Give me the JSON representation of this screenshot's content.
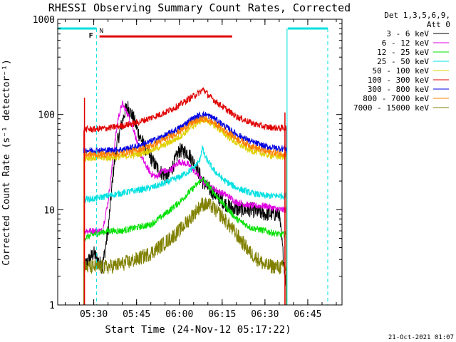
{
  "chart_data": {
    "type": "line",
    "title": "RHESSI Observing Summary Count Rates, Corrected",
    "xlabel": "Start Time (24-Nov-12 05:17:22)",
    "ylabel": "Corrected Count Rate (s⁻¹ detector⁻¹)",
    "y_scale": "log",
    "ylim": [
      1,
      1000
    ],
    "xlim": [
      "05:17:22",
      "06:57:00"
    ],
    "x_ticks": [
      "05:30",
      "05:45",
      "06:00",
      "06:15",
      "06:30",
      "06:45"
    ],
    "y_ticks": [
      "1",
      "10",
      "100",
      "1000"
    ],
    "legend_header": [
      "Det 1,3,5,6,9,",
      "Att 0"
    ],
    "legend_position": "right",
    "timestamp": "21-Oct-2021 01:07",
    "markers": {
      "flare": "F",
      "night": "N"
    },
    "series": [
      {
        "name": "3 - 6 keV",
        "color": "#000000",
        "t": [
          "05:26:30",
          "05:30:00",
          "05:33:00",
          "05:35:00",
          "05:37:00",
          "05:38:30",
          "05:41:00",
          "05:42:00",
          "05:44:00",
          "05:46:00",
          "05:48:00",
          "05:50:00",
          "05:52:00",
          "05:54:00",
          "05:56:00",
          "05:58:00",
          "06:00:00",
          "06:03:00",
          "06:06:00",
          "06:08:00",
          "06:10:00",
          "06:13:00",
          "06:17:00",
          "06:20:00",
          "06:25:00",
          "06:30:00",
          "06:35:00",
          "06:37:30"
        ],
        "v": [
          2.5,
          3.5,
          2.5,
          6,
          28,
          55,
          110,
          120,
          90,
          60,
          45,
          35,
          28,
          24,
          22,
          30,
          42,
          40,
          28,
          20,
          17,
          14,
          11,
          10,
          10,
          9,
          9,
          1.5
        ]
      },
      {
        "name": "6 - 12 keV",
        "color": "#e000e0",
        "t": [
          "05:26:30",
          "05:30:00",
          "05:33:00",
          "05:35:00",
          "05:37:00",
          "05:38:30",
          "05:40:00",
          "05:42:00",
          "05:44:00",
          "05:46:00",
          "05:48:00",
          "05:50:00",
          "05:52:00",
          "05:54:00",
          "05:56:00",
          "05:58:00",
          "06:00:00",
          "06:03:00",
          "06:06:00",
          "06:08:00",
          "06:10:00",
          "06:13:00",
          "06:17:00",
          "06:20:00",
          "06:25:00",
          "06:30:00",
          "06:35:00",
          "06:37:30"
        ],
        "v": [
          6,
          6,
          6,
          12,
          40,
          90,
          130,
          100,
          70,
          40,
          30,
          24,
          22,
          26,
          25,
          28,
          32,
          30,
          24,
          20,
          18,
          16,
          14,
          12,
          11,
          11,
          10,
          10
        ]
      },
      {
        "name": "12 - 25 keV",
        "color": "#00e000",
        "t": [
          "05:26:30",
          "05:30:00",
          "05:35:00",
          "05:40:00",
          "05:45:00",
          "05:50:00",
          "05:55:00",
          "06:00:00",
          "06:05:00",
          "06:08:00",
          "06:10:00",
          "06:13:00",
          "06:16:00",
          "06:20:00",
          "06:25:00",
          "06:30:00",
          "06:35:00",
          "06:37:30"
        ],
        "v": [
          5,
          5.5,
          6,
          6,
          6.5,
          7,
          9,
          12,
          17,
          21,
          18,
          14,
          11,
          8,
          6.5,
          6,
          5.5,
          5.5
        ]
      },
      {
        "name": "25 - 50 keV",
        "color": "#00e0e0",
        "t": [
          "05:26:30",
          "05:30:00",
          "05:35:00",
          "05:40:00",
          "05:45:00",
          "05:50:00",
          "05:55:00",
          "06:00:00",
          "06:04:00",
          "06:07:00",
          "06:08:00",
          "06:09:00",
          "06:12:00",
          "06:16:00",
          "06:20:00",
          "06:25:00",
          "06:30:00",
          "06:35:00",
          "06:37:30"
        ],
        "v": [
          13,
          13,
          14,
          15,
          16,
          17,
          19,
          22,
          26,
          32,
          45,
          36,
          26,
          20,
          17,
          15,
          14,
          14,
          14
        ]
      },
      {
        "name": "50 - 100 keV",
        "color": "#e0d000",
        "t": [
          "05:26:30",
          "05:30:00",
          "05:35:00",
          "05:40:00",
          "05:45:00",
          "05:50:00",
          "05:55:00",
          "06:00:00",
          "06:04:00",
          "06:07:00",
          "06:09:00",
          "06:12:00",
          "06:16:00",
          "06:20:00",
          "06:25:00",
          "06:30:00",
          "06:35:00",
          "06:37:30"
        ],
        "v": [
          35,
          35,
          35,
          36,
          38,
          42,
          48,
          58,
          72,
          85,
          88,
          78,
          62,
          50,
          42,
          38,
          36,
          36
        ]
      },
      {
        "name": "100 - 300 keV",
        "color": "#e00000",
        "t": [
          "05:26:30",
          "05:30:00",
          "05:35:00",
          "05:40:00",
          "05:45:00",
          "05:50:00",
          "05:55:00",
          "06:00:00",
          "06:04:00",
          "06:07:00",
          "06:08:30",
          "06:10:00",
          "06:13:00",
          "06:17:00",
          "06:20:00",
          "06:25:00",
          "06:30:00",
          "06:35:00",
          "06:37:30"
        ],
        "v": [
          70,
          70,
          72,
          76,
          82,
          92,
          105,
          125,
          150,
          170,
          185,
          160,
          135,
          110,
          95,
          82,
          74,
          72,
          72
        ]
      },
      {
        "name": "300 - 800 keV",
        "color": "#0000e0",
        "t": [
          "05:26:30",
          "05:30:00",
          "05:35:00",
          "05:40:00",
          "05:45:00",
          "05:50:00",
          "05:55:00",
          "06:00:00",
          "06:04:00",
          "06:07:00",
          "06:09:00",
          "06:12:00",
          "06:16:00",
          "06:20:00",
          "06:25:00",
          "06:30:00",
          "06:35:00",
          "06:37:30"
        ],
        "v": [
          42,
          42,
          42,
          43,
          46,
          52,
          60,
          72,
          88,
          98,
          100,
          92,
          75,
          62,
          52,
          46,
          44,
          44
        ]
      },
      {
        "name": "800 - 7000 keV",
        "color": "#ff8000",
        "t": [
          "05:26:30",
          "05:30:00",
          "05:35:00",
          "05:40:00",
          "05:45:00",
          "05:50:00",
          "05:55:00",
          "06:00:00",
          "06:04:00",
          "06:07:00",
          "06:09:00",
          "06:12:00",
          "06:16:00",
          "06:20:00",
          "06:25:00",
          "06:30:00",
          "06:35:00",
          "06:37:30"
        ],
        "v": [
          38,
          38,
          38,
          39,
          42,
          47,
          55,
          66,
          80,
          88,
          90,
          82,
          68,
          56,
          47,
          41,
          39,
          39
        ]
      },
      {
        "name": "7000 - 15000 keV",
        "color": "#808000",
        "t": [
          "05:26:30",
          "05:30:00",
          "05:35:00",
          "05:40:00",
          "05:45:00",
          "05:50:00",
          "05:55:00",
          "06:00:00",
          "06:05:00",
          "06:08:00",
          "06:11:00",
          "06:15:00",
          "06:20:00",
          "06:25:00",
          "06:30:00",
          "06:35:00",
          "06:37:30"
        ],
        "v": [
          2.5,
          2.5,
          2.5,
          2.7,
          3,
          3.5,
          4.5,
          6,
          9,
          11.5,
          11,
          8.5,
          5.5,
          3.5,
          2.6,
          2.5,
          2.5
        ]
      }
    ],
    "spikes": [
      {
        "t": "05:26:45",
        "v": 150,
        "color": "#e00000"
      },
      {
        "t": "06:37:00",
        "v": 105,
        "color": "#e00000"
      }
    ],
    "nodata_levels": {
      "#00e0e0": 1000,
      "#ff0000": 700
    },
    "level_lines": [
      {
        "t0": "05:17:22",
        "t1": "05:31:00",
        "v": 800,
        "color": "#00e0e0"
      },
      {
        "t0": "06:38:00",
        "t1": "06:52:00",
        "v": 800,
        "color": "#00e0e0"
      },
      {
        "t0": "05:32:00",
        "t1": "06:18:30",
        "v": 660,
        "color": "#e00000"
      }
    ],
    "verticals": [
      {
        "t": "05:31:00",
        "color": "#00e0e0",
        "dashed": true
      },
      {
        "t": "06:37:45",
        "color": "#00e0e0",
        "dashed": false
      },
      {
        "t": "06:52:00",
        "color": "#00e0e0",
        "dashed": true
      }
    ]
  }
}
